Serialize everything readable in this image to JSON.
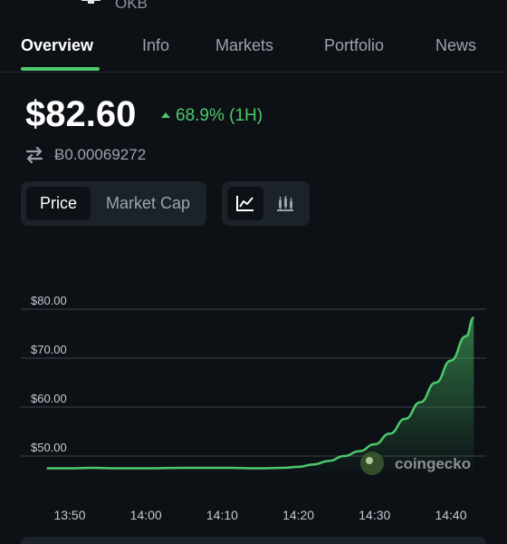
{
  "header": {
    "ticker": "OKB"
  },
  "tabs": [
    {
      "label": "Overview",
      "active": true
    },
    {
      "label": "Info",
      "active": false
    },
    {
      "label": "Markets",
      "active": false
    },
    {
      "label": "Portfolio",
      "active": false
    },
    {
      "label": "News",
      "active": false
    }
  ],
  "price": {
    "value": "$82.60",
    "change": "68.9% (1H)",
    "change_direction": "up",
    "btc_value": "Ƀ0.00069272"
  },
  "toggles": {
    "metric": [
      "Price",
      "Market Cap"
    ],
    "metric_selected": "Price",
    "chart_types": [
      "line-chart-icon",
      "candlestick-icon"
    ],
    "chart_type_selected": "line-chart-icon"
  },
  "watermark": {
    "text": "coingecko"
  },
  "colors": {
    "accent": "#4cc96a",
    "background": "#0d1116",
    "panel": "#1c222a",
    "muted": "#9aa3ad"
  },
  "chart_data": {
    "type": "area",
    "x": [
      "13:47",
      "13:50",
      "13:53",
      "13:56",
      "14:00",
      "14:05",
      "14:10",
      "14:15",
      "14:18",
      "14:20",
      "14:22",
      "14:24",
      "14:26",
      "14:28",
      "14:30",
      "14:32",
      "14:34",
      "14:36",
      "14:38",
      "14:40",
      "14:42",
      "14:43"
    ],
    "series": [
      {
        "values": [
          47.5,
          47.5,
          47.6,
          47.5,
          47.5,
          47.6,
          47.6,
          47.5,
          47.6,
          47.8,
          48.3,
          49.0,
          50.0,
          51.0,
          52.4,
          54.6,
          57.6,
          61.0,
          65.0,
          69.5,
          74.5,
          78.3
        ]
      }
    ],
    "y_ticks": [
      "$80.00",
      "$70.00",
      "$60.00",
      "$50.00"
    ],
    "x_ticks": [
      "13:50",
      "14:00",
      "14:10",
      "14:20",
      "14:30",
      "14:40"
    ],
    "ylim": [
      45,
      80
    ],
    "grid": true
  }
}
